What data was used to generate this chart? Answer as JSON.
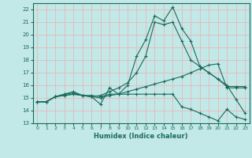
{
  "title": "",
  "xlabel": "Humidex (Indice chaleur)",
  "xlim": [
    -0.5,
    23.5
  ],
  "ylim": [
    13,
    22.5
  ],
  "yticks": [
    13,
    14,
    15,
    16,
    17,
    18,
    19,
    20,
    21,
    22
  ],
  "xticks": [
    0,
    1,
    2,
    3,
    4,
    5,
    6,
    7,
    8,
    9,
    10,
    11,
    12,
    13,
    14,
    15,
    16,
    17,
    18,
    19,
    20,
    21,
    22,
    23
  ],
  "bg_color": "#c2e8e8",
  "grid_color": "#e8b8b8",
  "line_color": "#1a6b5a",
  "line1": {
    "x": [
      0,
      1,
      2,
      3,
      4,
      5,
      6,
      7,
      8,
      9,
      10,
      11,
      12,
      13,
      14,
      15,
      16,
      17,
      18,
      19,
      20,
      21,
      22,
      23
    ],
    "y": [
      14.7,
      14.7,
      15.1,
      15.2,
      15.3,
      15.2,
      15.1,
      14.5,
      15.8,
      15.3,
      15.3,
      15.3,
      15.3,
      15.3,
      15.3,
      15.3,
      14.3,
      14.1,
      13.8,
      13.5,
      13.2,
      14.1,
      13.5,
      13.3
    ]
  },
  "line2": {
    "x": [
      0,
      1,
      2,
      3,
      4,
      5,
      6,
      7,
      8,
      9,
      10,
      11,
      12,
      13,
      14,
      15,
      16,
      17,
      18,
      19,
      20,
      21,
      22,
      23
    ],
    "y": [
      14.7,
      14.7,
      15.1,
      15.2,
      15.3,
      15.2,
      15.2,
      15.1,
      15.3,
      15.3,
      15.5,
      15.7,
      15.9,
      16.1,
      16.3,
      16.5,
      16.7,
      17.0,
      17.3,
      17.6,
      17.7,
      15.8,
      15.8,
      15.8
    ]
  },
  "line3": {
    "x": [
      0,
      1,
      2,
      3,
      4,
      5,
      6,
      7,
      8,
      9,
      10,
      11,
      12,
      13,
      14,
      15,
      16,
      17,
      18,
      19,
      20,
      21,
      22,
      23
    ],
    "y": [
      14.7,
      14.7,
      15.1,
      15.3,
      15.4,
      15.2,
      15.1,
      15.0,
      15.2,
      15.3,
      16.0,
      18.3,
      19.6,
      21.5,
      21.1,
      22.2,
      20.5,
      19.5,
      17.5,
      17.0,
      16.5,
      15.9,
      15.9,
      15.9
    ]
  },
  "line4": {
    "x": [
      0,
      1,
      2,
      3,
      4,
      5,
      6,
      7,
      8,
      9,
      10,
      11,
      12,
      13,
      14,
      15,
      16,
      17,
      18,
      19,
      20,
      21,
      22,
      23
    ],
    "y": [
      14.7,
      14.7,
      15.1,
      15.3,
      15.5,
      15.2,
      15.1,
      15.2,
      15.5,
      15.8,
      16.2,
      17.0,
      18.3,
      21.0,
      20.8,
      21.0,
      19.5,
      18.0,
      17.5,
      17.0,
      16.5,
      16.0,
      14.9,
      13.8
    ]
  }
}
